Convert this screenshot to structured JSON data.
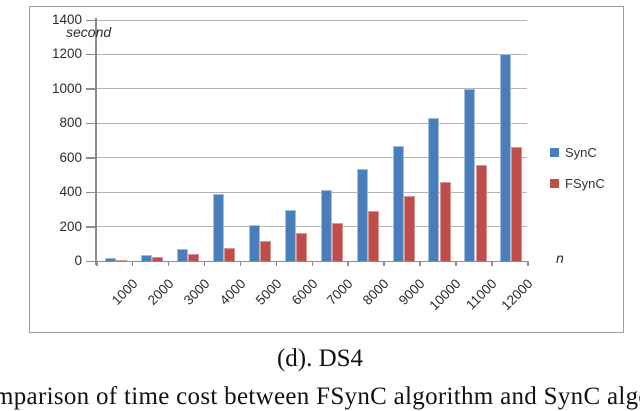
{
  "chart_data": {
    "type": "bar",
    "title": "",
    "ylabel": "second",
    "xlabel": "n",
    "categories": [
      "1000",
      "2000",
      "3000",
      "4000",
      "5000",
      "6000",
      "7000",
      "8000",
      "9000",
      "10000",
      "11000",
      "12000"
    ],
    "series": [
      {
        "name": "SynC",
        "color": "#4a7ebb",
        "border_color": "#a3bedf",
        "values": [
          15,
          35,
          70,
          390,
          210,
          295,
          410,
          535,
          670,
          830,
          1000,
          1200
        ]
      },
      {
        "name": "FSynC",
        "color": "#bf4e4b",
        "border_color": "#d79593",
        "values": [
          6,
          22,
          42,
          78,
          116,
          165,
          222,
          288,
          377,
          460,
          556,
          665
        ]
      }
    ],
    "ylim": [
      0,
      1400
    ],
    "yticks": [
      0,
      200,
      400,
      600,
      800,
      1000,
      1200,
      1400
    ],
    "grid": true,
    "legend_position": "right"
  },
  "caption": "(d). DS4",
  "bottom_text_fragment": "mparison of time cost between FSynC algorithm and SynC algorithm",
  "colors": {
    "grid": "#b3b3b3",
    "axis": "#8c8c8c",
    "tick_text": "#2b2b2b",
    "frame_border": "#9e9e9e",
    "background": "#ffffff"
  }
}
